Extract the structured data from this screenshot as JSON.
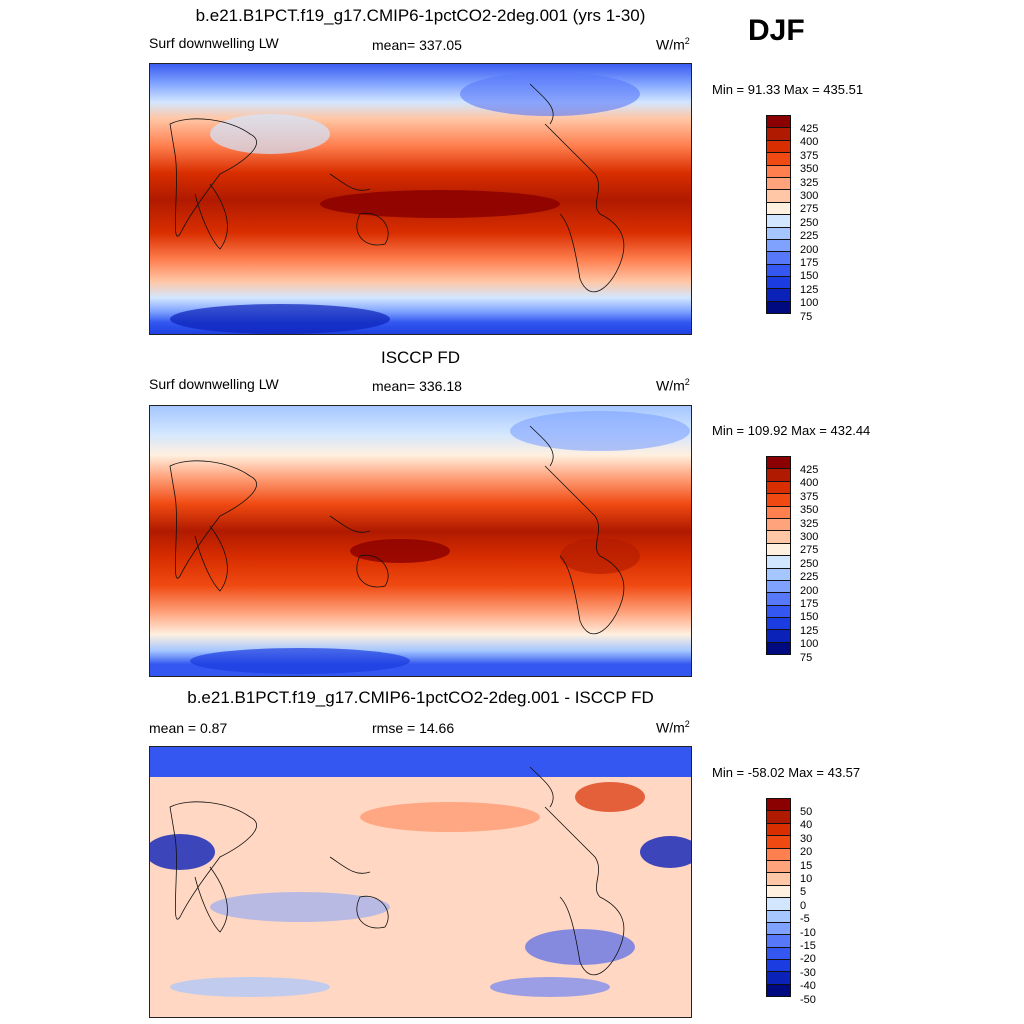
{
  "season": "DJF",
  "panels": [
    {
      "title": "b.e21.B1PCT.f19_g17.CMIP6-1pctCO2-2deg.001 (yrs 1-30)",
      "variable": "Surf downwelling LW",
      "stat": "mean= 337.05",
      "units_base": "W/m",
      "units_exp": "2",
      "minmax": "Min =  91.33 Max = 435.51",
      "colorbar": {
        "labels": [
          "425",
          "400",
          "375",
          "350",
          "325",
          "300",
          "275",
          "250",
          "225",
          "200",
          "175",
          "150",
          "125",
          "100",
          "75"
        ],
        "colors": [
          "#8b0000",
          "#b01a00",
          "#d92e00",
          "#f04a12",
          "#ff7f4f",
          "#ffa37d",
          "#ffc7a6",
          "#fff0e0",
          "#d2e6ff",
          "#a5c6ff",
          "#7fa2ff",
          "#5878fa",
          "#3357f0",
          "#1b3ce0",
          "#0b22b8",
          "#000a80"
        ]
      }
    },
    {
      "title": "ISCCP FD",
      "variable": "Surf downwelling LW",
      "stat": "mean= 336.18",
      "units_base": "W/m",
      "units_exp": "2",
      "minmax": "Min = 109.92 Max = 432.44",
      "colorbar": {
        "labels": [
          "425",
          "400",
          "375",
          "350",
          "325",
          "300",
          "275",
          "250",
          "225",
          "200",
          "175",
          "150",
          "125",
          "100",
          "75"
        ],
        "colors": [
          "#8b0000",
          "#b01a00",
          "#d92e00",
          "#f04a12",
          "#ff7f4f",
          "#ffa37d",
          "#ffc7a6",
          "#fff0e0",
          "#d2e6ff",
          "#a5c6ff",
          "#7fa2ff",
          "#5878fa",
          "#3357f0",
          "#1b3ce0",
          "#0b22b8",
          "#000a80"
        ]
      }
    },
    {
      "title": "b.e21.B1PCT.f19_g17.CMIP6-1pctCO2-2deg.001 - ISCCP FD",
      "variable": "mean =   0.87",
      "stat": "rmse =  14.66",
      "units_base": "W/m",
      "units_exp": "2",
      "minmax": "Min = -58.02 Max =  43.57",
      "colorbar": {
        "labels": [
          "50",
          "40",
          "30",
          "20",
          "15",
          "10",
          "5",
          "0",
          "-5",
          "-10",
          "-15",
          "-20",
          "-30",
          "-40",
          "-50"
        ],
        "colors": [
          "#8b0000",
          "#b01a00",
          "#d92e00",
          "#f04a12",
          "#ff7f4f",
          "#ffa37d",
          "#ffc7a6",
          "#fff0e0",
          "#d2e6ff",
          "#a5c6ff",
          "#7fa2ff",
          "#5878fa",
          "#3357f0",
          "#1b3ce0",
          "#0b22b8",
          "#000a80"
        ]
      }
    }
  ],
  "chart_data": [
    {
      "type": "heatmap",
      "title": "b.e21.B1PCT.f19_g17.CMIP6-1pctCO2-2deg.001 (yrs 1-30)",
      "variable": "Surf downwelling LW",
      "units": "W/m2",
      "mean": 337.05,
      "min": 91.33,
      "max": 435.51,
      "levels": [
        75,
        100,
        125,
        150,
        175,
        200,
        225,
        250,
        275,
        300,
        325,
        350,
        375,
        400,
        425
      ]
    },
    {
      "type": "heatmap",
      "title": "ISCCP FD",
      "variable": "Surf downwelling LW",
      "units": "W/m2",
      "mean": 336.18,
      "min": 109.92,
      "max": 432.44,
      "levels": [
        75,
        100,
        125,
        150,
        175,
        200,
        225,
        250,
        275,
        300,
        325,
        350,
        375,
        400,
        425
      ]
    },
    {
      "type": "heatmap",
      "title": "b.e21.B1PCT.f19_g17.CMIP6-1pctCO2-2deg.001 - ISCCP FD",
      "units": "W/m2",
      "mean": 0.87,
      "rmse": 14.66,
      "min": -58.02,
      "max": 43.57,
      "levels": [
        -50,
        -40,
        -30,
        -20,
        -15,
        -10,
        -5,
        0,
        5,
        10,
        15,
        20,
        30,
        40,
        50
      ]
    }
  ]
}
